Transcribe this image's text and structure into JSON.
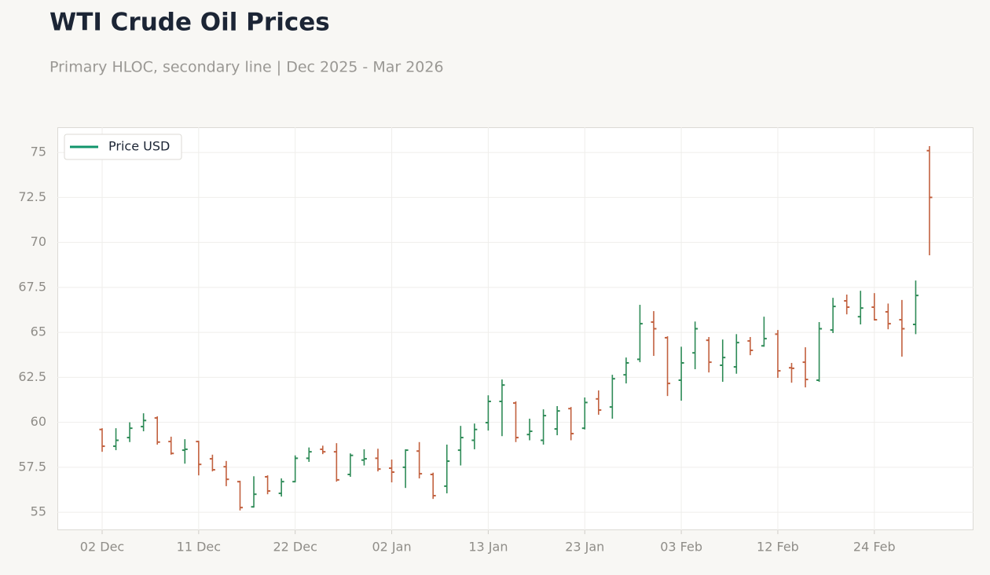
{
  "chart_data": {
    "type": "ohlc",
    "title": "WTI Crude Oil Prices",
    "subtitle": "Primary HLOC, secondary line | Dec 2025 - Mar 2026",
    "categories": [
      "02 Dec",
      null,
      null,
      null,
      null,
      null,
      null,
      "11 Dec",
      null,
      null,
      null,
      null,
      null,
      null,
      "22 Dec",
      null,
      null,
      null,
      null,
      null,
      null,
      "02 Jan",
      null,
      null,
      null,
      null,
      null,
      null,
      "13 Jan",
      null,
      null,
      null,
      null,
      null,
      null,
      "23 Jan",
      null,
      null,
      null,
      null,
      null,
      null,
      "03 Feb",
      null,
      null,
      null,
      null,
      null,
      null,
      "12 Feb",
      null,
      null,
      null,
      null,
      null,
      null,
      "24 Feb",
      null,
      null,
      null,
      null
    ],
    "open": [
      59.6,
      58.67,
      59.15,
      59.76,
      60.24,
      58.93,
      58.45,
      58.93,
      57.97,
      57.53,
      56.7,
      55.3,
      56.97,
      56.05,
      56.7,
      58.0,
      58.5,
      58.36,
      57.1,
      57.9,
      58.0,
      57.45,
      57.5,
      58.4,
      57.1,
      56.45,
      58.45,
      59.0,
      59.98,
      61.16,
      61.07,
      59.32,
      59.0,
      59.63,
      60.76,
      59.67,
      61.3,
      60.85,
      62.64,
      63.5,
      65.57,
      64.7,
      62.34,
      63.86,
      64.56,
      63.17,
      63.08,
      64.52,
      64.25,
      64.9,
      63.03,
      63.34,
      62.34,
      65.13,
      66.75,
      65.87,
      66.4,
      66.14,
      65.7,
      65.44,
      75.1
    ],
    "high": [
      59.67,
      59.67,
      60.0,
      60.5,
      60.33,
      59.2,
      59.06,
      58.97,
      58.2,
      57.85,
      56.75,
      57.0,
      57.05,
      56.88,
      58.16,
      58.6,
      58.7,
      58.84,
      58.27,
      58.5,
      58.53,
      57.93,
      58.5,
      58.9,
      57.2,
      58.76,
      59.8,
      59.93,
      61.5,
      62.38,
      61.16,
      60.2,
      60.72,
      60.9,
      60.85,
      61.38,
      61.77,
      62.64,
      63.6,
      66.53,
      66.18,
      64.78,
      64.2,
      65.6,
      64.74,
      64.6,
      64.9,
      64.74,
      65.87,
      65.13,
      63.3,
      64.17,
      65.57,
      66.92,
      67.1,
      67.31,
      67.18,
      66.6,
      66.8,
      67.88,
      75.35
    ],
    "low": [
      58.36,
      58.45,
      58.9,
      59.5,
      58.76,
      58.2,
      57.7,
      57.05,
      57.27,
      56.45,
      55.1,
      55.26,
      56.0,
      55.87,
      56.66,
      57.8,
      58.23,
      56.7,
      56.97,
      57.6,
      57.27,
      56.66,
      56.35,
      56.88,
      55.74,
      56.05,
      57.6,
      58.5,
      59.54,
      59.23,
      58.9,
      59.0,
      58.76,
      59.28,
      59.0,
      59.6,
      60.42,
      60.2,
      62.16,
      63.34,
      63.69,
      61.46,
      61.2,
      62.95,
      62.77,
      62.25,
      62.7,
      63.73,
      64.2,
      62.47,
      62.2,
      61.94,
      62.25,
      64.96,
      66.0,
      65.44,
      65.66,
      65.17,
      63.65,
      64.9,
      69.28
    ],
    "close": [
      58.67,
      59.0,
      59.67,
      60.1,
      58.9,
      58.27,
      58.5,
      57.66,
      57.36,
      56.83,
      55.26,
      56.0,
      56.18,
      56.7,
      58.0,
      58.36,
      58.36,
      56.8,
      58.16,
      57.97,
      57.4,
      57.23,
      58.45,
      57.14,
      55.92,
      57.84,
      59.15,
      59.6,
      61.16,
      62.07,
      59.15,
      59.5,
      60.37,
      60.63,
      59.37,
      61.1,
      60.68,
      62.42,
      63.3,
      65.48,
      65.2,
      62.16,
      63.3,
      65.2,
      63.34,
      63.6,
      64.43,
      64.0,
      64.65,
      62.86,
      63.0,
      62.38,
      65.2,
      66.44,
      66.4,
      66.35,
      65.7,
      65.48,
      65.2,
      67.05,
      72.5
    ],
    "up_color": "#2e8b57",
    "down_color": "#c2613f",
    "legend": {
      "name": "Price USD",
      "color": "#11956b",
      "position": "upper left"
    },
    "ylim": [
      54.0,
      76.4
    ],
    "yticks": [
      55,
      57.5,
      60,
      62.5,
      65,
      67.5,
      70,
      72.5,
      75
    ],
    "grid": true
  }
}
